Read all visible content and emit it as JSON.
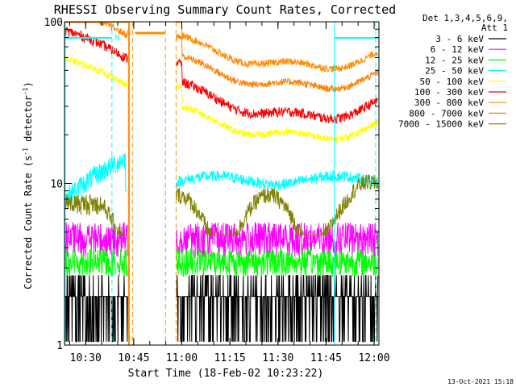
{
  "chart_data": {
    "type": "line",
    "title": "RHESSI Observing Summary Count Rates, Corrected",
    "xlabel": "Start Time (18-Feb-02 10:23:22)",
    "ylabel_main": "Corrected Count Rate (s",
    "ylabel_sup1": "-1",
    "ylabel_mid": " detector",
    "ylabel_sup2": "-1",
    "ylabel_end": ")",
    "y_scale": "log",
    "ylim": [
      1,
      100
    ],
    "xlim": [
      "10:23:22",
      "12:01:30"
    ],
    "x_ticks": [
      "10:30",
      "10:45",
      "11:00",
      "11:15",
      "11:30",
      "11:45",
      "12:00"
    ],
    "x_tick_minutes": [
      6.6,
      21.6,
      36.6,
      51.6,
      66.6,
      81.6,
      96.6
    ],
    "y_ticks": [
      1,
      10,
      100
    ],
    "y_tick_labels": [
      "1",
      "10",
      "100"
    ],
    "legend_header": [
      "Det 1,3,4,5,6,9,",
      "Att 1"
    ],
    "legend_position": "top-right",
    "flags": [
      {
        "label": "N",
        "color": "#00ffff",
        "minute": 16.5
      },
      {
        "label": "S",
        "color": "#ff8c00",
        "minute": 20.0
      }
    ],
    "series": [
      {
        "name": "3 - 6 keV",
        "color": "#000000",
        "base": 2.2,
        "amp": 0.5,
        "noise": 0.7,
        "binstep": 0.55,
        "pattern": "flat"
      },
      {
        "name": "6 - 12 keV",
        "color": "#ff00ff",
        "base": 4.6,
        "amp": 0.2,
        "noise": 0.25,
        "binstep": 0.0,
        "pattern": "flat"
      },
      {
        "name": "12 - 25 keV",
        "color": "#00ff00",
        "base": 3.3,
        "amp": 0.2,
        "noise": 0.2,
        "binstep": 0.0,
        "pattern": "flat"
      },
      {
        "name": "25 - 50 keV",
        "color": "#00ffff",
        "base": 10.5,
        "amp": 0.7,
        "noise": 0.08,
        "binstep": 0.0,
        "pattern": "cyanrise"
      },
      {
        "name": "50 - 100 keV",
        "color": "#ffff00",
        "base": 22.0,
        "amp": 0.3,
        "noise": 0.05,
        "binstep": 0.0,
        "pattern": "u"
      },
      {
        "name": "100 - 300 keV",
        "color": "#ff0000",
        "base": 30.0,
        "amp": 0.35,
        "noise": 0.07,
        "binstep": 0.0,
        "pattern": "u"
      },
      {
        "name": "300 - 800 keV",
        "color": "#ff8c00",
        "base": 60.0,
        "amp": 0.3,
        "noise": 0.05,
        "binstep": 0.0,
        "pattern": "u"
      },
      {
        "name": "800 - 7000 keV",
        "color": "#ff8000",
        "base": 45.0,
        "amp": 0.3,
        "noise": 0.05,
        "binstep": 0.0,
        "pattern": "u2"
      },
      {
        "name": "7000 - 15000 keV",
        "color": "#808000",
        "base": 6.3,
        "amp": 0.3,
        "noise": 0.12,
        "binstep": 0.0,
        "pattern": "olive"
      }
    ],
    "legend_series_names": [
      "3 - 6 keV",
      "6 - 12 keV",
      "12 - 25 keV",
      "25 - 50 keV",
      "50 - 100 keV",
      "100 - 300 keV",
      "300 - 800 keV",
      "800 - 7000 keV",
      "7000 - 15000 keV"
    ],
    "legend_series_colors": [
      "#000000",
      "#ff00ff",
      "#00ff00",
      "#00ffff",
      "#ffff00",
      "#ff0000",
      "#ff8c00",
      "#ff8000",
      "#808000"
    ],
    "data_gaps_minutes": [
      [
        21.6,
        34.6
      ]
    ],
    "footer_date": "13-Oct-2021 15:18"
  }
}
